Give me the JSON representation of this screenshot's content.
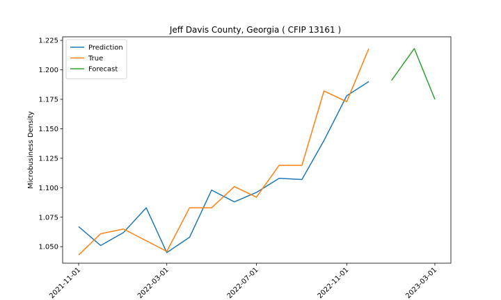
{
  "chart_data": {
    "type": "line",
    "title": "Jeff Davis County, Georgia ( CFIP 13161 )",
    "xlabel": "",
    "ylabel": "Microbusiness Density",
    "x_ticks": [
      "2021-11-01",
      "2022-03-01",
      "2022-07-01",
      "2022-11-01",
      "2023-03-01"
    ],
    "y_ticks": [
      "1.050",
      "1.075",
      "1.100",
      "1.125",
      "1.150",
      "1.175",
      "1.200",
      "1.225"
    ],
    "ylim": [
      1.036,
      1.228
    ],
    "grid": false,
    "legend_position": "top-left",
    "series": [
      {
        "name": "Prediction",
        "color": "#1f77b4",
        "points": [
          {
            "x": "2021-11-01",
            "y": 1.067
          },
          {
            "x": "2021-12-01",
            "y": 1.051
          },
          {
            "x": "2022-01-01",
            "y": 1.062
          },
          {
            "x": "2022-02-01",
            "y": 1.083
          },
          {
            "x": "2022-03-01",
            "y": 1.045
          },
          {
            "x": "2022-04-01",
            "y": 1.058
          },
          {
            "x": "2022-05-01",
            "y": 1.098
          },
          {
            "x": "2022-06-01",
            "y": 1.088
          },
          {
            "x": "2022-07-01",
            "y": 1.096
          },
          {
            "x": "2022-08-01",
            "y": 1.108
          },
          {
            "x": "2022-09-01",
            "y": 1.107
          },
          {
            "x": "2022-10-01",
            "y": 1.14
          },
          {
            "x": "2022-11-01",
            "y": 1.178
          },
          {
            "x": "2022-12-01",
            "y": 1.19
          }
        ]
      },
      {
        "name": "True",
        "color": "#ff7f0e",
        "points": [
          {
            "x": "2021-11-01",
            "y": 1.043
          },
          {
            "x": "2021-12-01",
            "y": 1.061
          },
          {
            "x": "2022-01-01",
            "y": 1.065
          },
          {
            "x": "2022-03-01",
            "y": 1.046
          },
          {
            "x": "2022-04-01",
            "y": 1.083
          },
          {
            "x": "2022-05-01",
            "y": 1.083
          },
          {
            "x": "2022-06-01",
            "y": 1.101
          },
          {
            "x": "2022-07-01",
            "y": 1.092
          },
          {
            "x": "2022-08-01",
            "y": 1.119
          },
          {
            "x": "2022-09-01",
            "y": 1.119
          },
          {
            "x": "2022-10-01",
            "y": 1.182
          },
          {
            "x": "2022-11-01",
            "y": 1.173
          },
          {
            "x": "2022-12-01",
            "y": 1.218
          }
        ]
      },
      {
        "name": "Forecast",
        "color": "#2ca02c",
        "points": [
          {
            "x": "2023-01-01",
            "y": 1.191
          },
          {
            "x": "2023-02-01",
            "y": 1.218
          },
          {
            "x": "2023-03-01",
            "y": 1.175
          }
        ]
      }
    ]
  }
}
